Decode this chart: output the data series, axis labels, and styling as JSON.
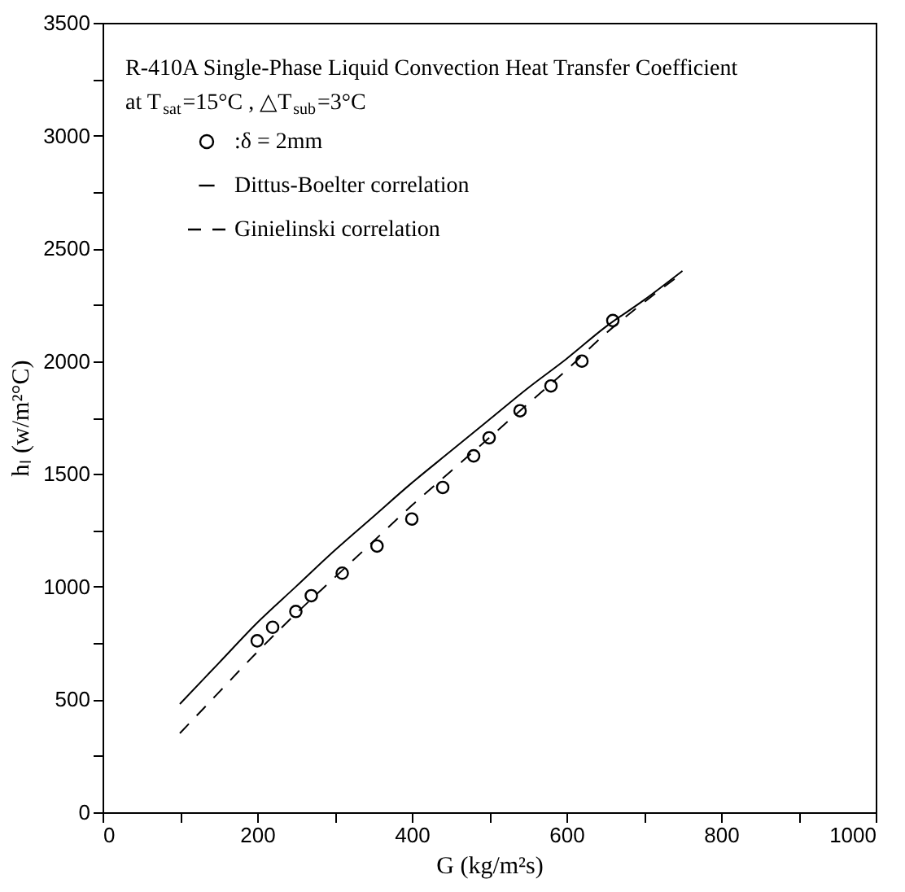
{
  "chart_data": {
    "type": "line",
    "title": "R-410A Single-Phase Liquid Convection Heat Transfer Coefficient",
    "subtitle": "at T$_{sat}$=15°C , △T$_{sub}$=3°C",
    "xlabel": "G (kg/m²s)",
    "ylabel": "hₗ (w/m²°C)",
    "xlim": [
      0,
      1000
    ],
    "ylim": [
      0,
      3500
    ],
    "xticks": [
      0,
      {
        "value": 100,
        "label": null
      },
      200,
      {
        "value": 300,
        "label": null
      },
      400,
      {
        "value": 500,
        "label": null
      },
      600,
      {
        "value": 700,
        "label": null
      },
      800,
      {
        "value": 900,
        "label": null
      },
      1000
    ],
    "yticks": [
      0,
      {
        "value": 250,
        "label": null
      },
      500,
      {
        "value": 750,
        "label": null
      },
      1000,
      {
        "value": 1250,
        "label": null
      },
      1500,
      {
        "value": 1750,
        "label": null
      },
      2000,
      {
        "value": 2250,
        "label": null
      },
      2500,
      {
        "value": 2750,
        "label": null
      },
      3000,
      {
        "value": 3250,
        "label": null
      },
      3500
    ],
    "legend": "top left",
    "series": [
      {
        "name": ":δ = 2mm",
        "type": "scatter",
        "marker": "circle",
        "color": "#000000",
        "x": [
          200,
          220,
          250,
          270,
          310,
          355,
          400,
          440,
          480,
          500,
          540,
          580,
          620,
          660
        ],
        "values": [
          760,
          820,
          890,
          960,
          1060,
          1180,
          1300,
          1440,
          1580,
          1660,
          1780,
          1890,
          2000,
          2180
        ]
      },
      {
        "name": "Dittus-Boelter correlation",
        "line_style": "solid",
        "color": "#000000",
        "x": [
          100,
          150,
          200,
          250,
          300,
          350,
          400,
          450,
          500,
          550,
          600,
          650,
          700,
          750
        ],
        "values": [
          480,
          660,
          840,
          1000,
          1160,
          1310,
          1460,
          1600,
          1740,
          1880,
          2010,
          2150,
          2270,
          2400
        ]
      },
      {
        "name": "Ginielinski correlation",
        "line_style": "dashed",
        "color": "#000000",
        "x": [
          100,
          150,
          200,
          250,
          300,
          350,
          400,
          450,
          500,
          550,
          600,
          650,
          700,
          750
        ],
        "values": [
          350,
          530,
          710,
          880,
          1040,
          1200,
          1360,
          1510,
          1660,
          1810,
          1960,
          2120,
          2260,
          2390
        ]
      }
    ]
  }
}
